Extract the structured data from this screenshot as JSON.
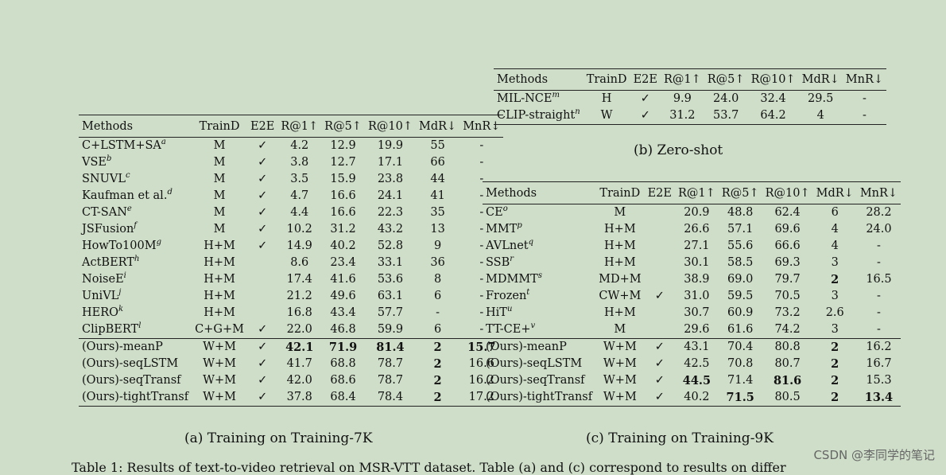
{
  "table_a": {
    "caption": "(a) Training on Training-7K",
    "headers": [
      "Methods",
      "TrainD",
      "E2E",
      "R@1↑",
      "R@5↑",
      "R@10↑",
      "MdR↓",
      "MnR↓"
    ],
    "rows": [
      {
        "method": "C+LSTM+SA",
        "sup": "a",
        "traind": "M",
        "e2e": "✓",
        "r1": "4.2",
        "r5": "12.9",
        "r10": "19.9",
        "mdr": "55",
        "mnr": "-"
      },
      {
        "method": "VSE",
        "sup": "b",
        "traind": "M",
        "e2e": "✓",
        "r1": "3.8",
        "r5": "12.7",
        "r10": "17.1",
        "mdr": "66",
        "mnr": "-"
      },
      {
        "method": "SNUVL",
        "sup": "c",
        "traind": "M",
        "e2e": "✓",
        "r1": "3.5",
        "r5": "15.9",
        "r10": "23.8",
        "mdr": "44",
        "mnr": "-"
      },
      {
        "method": "Kaufman et al.",
        "sup": "d",
        "traind": "M",
        "e2e": "✓",
        "r1": "4.7",
        "r5": "16.6",
        "r10": "24.1",
        "mdr": "41",
        "mnr": "-"
      },
      {
        "method": "CT-SAN",
        "sup": "e",
        "traind": "M",
        "e2e": "✓",
        "r1": "4.4",
        "r5": "16.6",
        "r10": "22.3",
        "mdr": "35",
        "mnr": "-"
      },
      {
        "method": "JSFusion",
        "sup": "f",
        "traind": "M",
        "e2e": "✓",
        "r1": "10.2",
        "r5": "31.2",
        "r10": "43.2",
        "mdr": "13",
        "mnr": "-"
      },
      {
        "method": "HowTo100M",
        "sup": "g",
        "traind": "H+M",
        "e2e": "✓",
        "r1": "14.9",
        "r5": "40.2",
        "r10": "52.8",
        "mdr": "9",
        "mnr": "-"
      },
      {
        "method": "ActBERT",
        "sup": "h",
        "traind": "H+M",
        "e2e": "",
        "r1": "8.6",
        "r5": "23.4",
        "r10": "33.1",
        "mdr": "36",
        "mnr": "-"
      },
      {
        "method": "NoiseE",
        "sup": "i",
        "traind": "H+M",
        "e2e": "",
        "r1": "17.4",
        "r5": "41.6",
        "r10": "53.6",
        "mdr": "8",
        "mnr": "-"
      },
      {
        "method": "UniVL",
        "sup": "j",
        "traind": "H+M",
        "e2e": "",
        "r1": "21.2",
        "r5": "49.6",
        "r10": "63.1",
        "mdr": "6",
        "mnr": "-"
      },
      {
        "method": "HERO",
        "sup": "k",
        "traind": "H+M",
        "e2e": "",
        "r1": "16.8",
        "r5": "43.4",
        "r10": "57.7",
        "mdr": "-",
        "mnr": "-"
      },
      {
        "method": "ClipBERT",
        "sup": "l",
        "traind": "C+G+M",
        "e2e": "✓",
        "r1": "22.0",
        "r5": "46.8",
        "r10": "59.9",
        "mdr": "6",
        "mnr": "-"
      }
    ],
    "ours": [
      {
        "method": "(Ours)-meanP",
        "traind": "W+M",
        "e2e": "✓",
        "r1": "42.1",
        "r5": "71.9",
        "r10": "81.4",
        "mdr": "2",
        "mnr": "15.7",
        "bold": [
          "r1",
          "r5",
          "r10",
          "mdr",
          "mnr"
        ]
      },
      {
        "method": "(Ours)-seqLSTM",
        "traind": "W+M",
        "e2e": "✓",
        "r1": "41.7",
        "r5": "68.8",
        "r10": "78.7",
        "mdr": "2",
        "mnr": "16.6",
        "bold": [
          "mdr"
        ]
      },
      {
        "method": "(Ours)-seqTransf",
        "traind": "W+M",
        "e2e": "✓",
        "r1": "42.0",
        "r5": "68.6",
        "r10": "78.7",
        "mdr": "2",
        "mnr": "16.2",
        "bold": [
          "mdr"
        ]
      },
      {
        "method": "(Ours)-tightTransf",
        "traind": "W+M",
        "e2e": "✓",
        "r1": "37.8",
        "r5": "68.4",
        "r10": "78.4",
        "mdr": "2",
        "mnr": "17.2",
        "bold": [
          "mdr"
        ]
      }
    ]
  },
  "table_b": {
    "caption": "(b) Zero-shot",
    "headers": [
      "Methods",
      "TrainD",
      "E2E",
      "R@1↑",
      "R@5↑",
      "R@10↑",
      "MdR↓",
      "MnR↓"
    ],
    "rows": [
      {
        "method": "MIL-NCE",
        "sup": "m",
        "traind": "H",
        "e2e": "✓",
        "r1": "9.9",
        "r5": "24.0",
        "r10": "32.4",
        "mdr": "29.5",
        "mnr": "-"
      },
      {
        "method": "CLIP-straight",
        "sup": "n",
        "traind": "W",
        "e2e": "✓",
        "r1": "31.2",
        "r5": "53.7",
        "r10": "64.2",
        "mdr": "4",
        "mnr": "-"
      }
    ]
  },
  "table_c": {
    "caption": "(c) Training on Training-9K",
    "headers": [
      "Methods",
      "TrainD",
      "E2E",
      "R@1↑",
      "R@5↑",
      "R@10↑",
      "MdR↓",
      "MnR↓"
    ],
    "rows": [
      {
        "method": "CE",
        "sup": "o",
        "traind": "M",
        "e2e": "",
        "r1": "20.9",
        "r5": "48.8",
        "r10": "62.4",
        "mdr": "6",
        "mnr": "28.2"
      },
      {
        "method": "MMT",
        "sup": "p",
        "traind": "H+M",
        "e2e": "",
        "r1": "26.6",
        "r5": "57.1",
        "r10": "69.6",
        "mdr": "4",
        "mnr": "24.0"
      },
      {
        "method": "AVLnet",
        "sup": "q",
        "traind": "H+M",
        "e2e": "",
        "r1": "27.1",
        "r5": "55.6",
        "r10": "66.6",
        "mdr": "4",
        "mnr": "-"
      },
      {
        "method": "SSB",
        "sup": "r",
        "traind": "H+M",
        "e2e": "",
        "r1": "30.1",
        "r5": "58.5",
        "r10": "69.3",
        "mdr": "3",
        "mnr": "-"
      },
      {
        "method": "MDMMT",
        "sup": "s",
        "traind": "MD+M",
        "e2e": "",
        "r1": "38.9",
        "r5": "69.0",
        "r10": "79.7",
        "mdr": "2",
        "mnr": "16.5",
        "bold": [
          "mdr"
        ]
      },
      {
        "method": "Frozen",
        "sup": "t",
        "traind": "CW+M",
        "e2e": "✓",
        "r1": "31.0",
        "r5": "59.5",
        "r10": "70.5",
        "mdr": "3",
        "mnr": "-"
      },
      {
        "method": "HiT",
        "sup": "u",
        "traind": "H+M",
        "e2e": "",
        "r1": "30.7",
        "r5": "60.9",
        "r10": "73.2",
        "mdr": "2.6",
        "mnr": "-"
      },
      {
        "method": "TT-CE+",
        "sup": "v",
        "traind": "M",
        "e2e": "",
        "r1": "29.6",
        "r5": "61.6",
        "r10": "74.2",
        "mdr": "3",
        "mnr": "-"
      }
    ],
    "ours": [
      {
        "method": "(Ours)-meanP",
        "traind": "W+M",
        "e2e": "✓",
        "r1": "43.1",
        "r5": "70.4",
        "r10": "80.8",
        "mdr": "2",
        "mnr": "16.2",
        "bold": [
          "mdr"
        ]
      },
      {
        "method": "(Ours)-seqLSTM",
        "traind": "W+M",
        "e2e": "✓",
        "r1": "42.5",
        "r5": "70.8",
        "r10": "80.7",
        "mdr": "2",
        "mnr": "16.7",
        "bold": [
          "mdr"
        ]
      },
      {
        "method": "(Ours)-seqTransf",
        "traind": "W+M",
        "e2e": "✓",
        "r1": "44.5",
        "r5": "71.4",
        "r10": "81.6",
        "mdr": "2",
        "mnr": "15.3",
        "bold": [
          "r1",
          "r10",
          "mdr"
        ]
      },
      {
        "method": "(Ours)-tightTransf",
        "traind": "W+M",
        "e2e": "✓",
        "r1": "40.2",
        "r5": "71.5",
        "r10": "80.5",
        "mdr": "2",
        "mnr": "13.4",
        "bold": [
          "r5",
          "mdr",
          "mnr"
        ]
      }
    ]
  },
  "footer": "Table 1: Results of text-to-video retrieval on MSR-VTT dataset. Table (a) and (c) correspond to results on differ",
  "watermark": "CSDN @李同学的笔记"
}
